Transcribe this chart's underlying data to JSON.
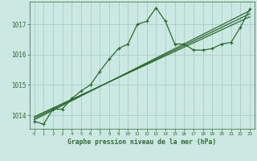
{
  "title": "Graphe pression niveau de la mer (hPa)",
  "bg_color": "#cce8e3",
  "grid_color": "#a8cdc8",
  "line_color": "#2d6a2d",
  "xlim": [
    -0.5,
    23.5
  ],
  "ylim": [
    1013.55,
    1017.75
  ],
  "yticks": [
    1014,
    1015,
    1016,
    1017
  ],
  "xticks": [
    0,
    1,
    2,
    3,
    4,
    5,
    6,
    7,
    8,
    9,
    10,
    11,
    12,
    13,
    14,
    15,
    16,
    17,
    18,
    19,
    20,
    21,
    22,
    23
  ],
  "series1": [
    1013.8,
    1013.7,
    1014.2,
    1014.2,
    1014.55,
    1014.8,
    1015.0,
    1015.45,
    1015.85,
    1016.2,
    1016.35,
    1017.0,
    1017.1,
    1017.55,
    1017.1,
    1016.35,
    1016.35,
    1016.15,
    1016.15,
    1016.2,
    1016.35,
    1016.4,
    1016.9,
    1017.5
  ],
  "trend1_x": [
    0,
    23
  ],
  "trend1_y": [
    1013.85,
    1017.45
  ],
  "trend2_x": [
    0,
    23
  ],
  "trend2_y": [
    1013.9,
    1017.35
  ],
  "trend3_x": [
    0,
    23
  ],
  "trend3_y": [
    1013.95,
    1017.25
  ]
}
